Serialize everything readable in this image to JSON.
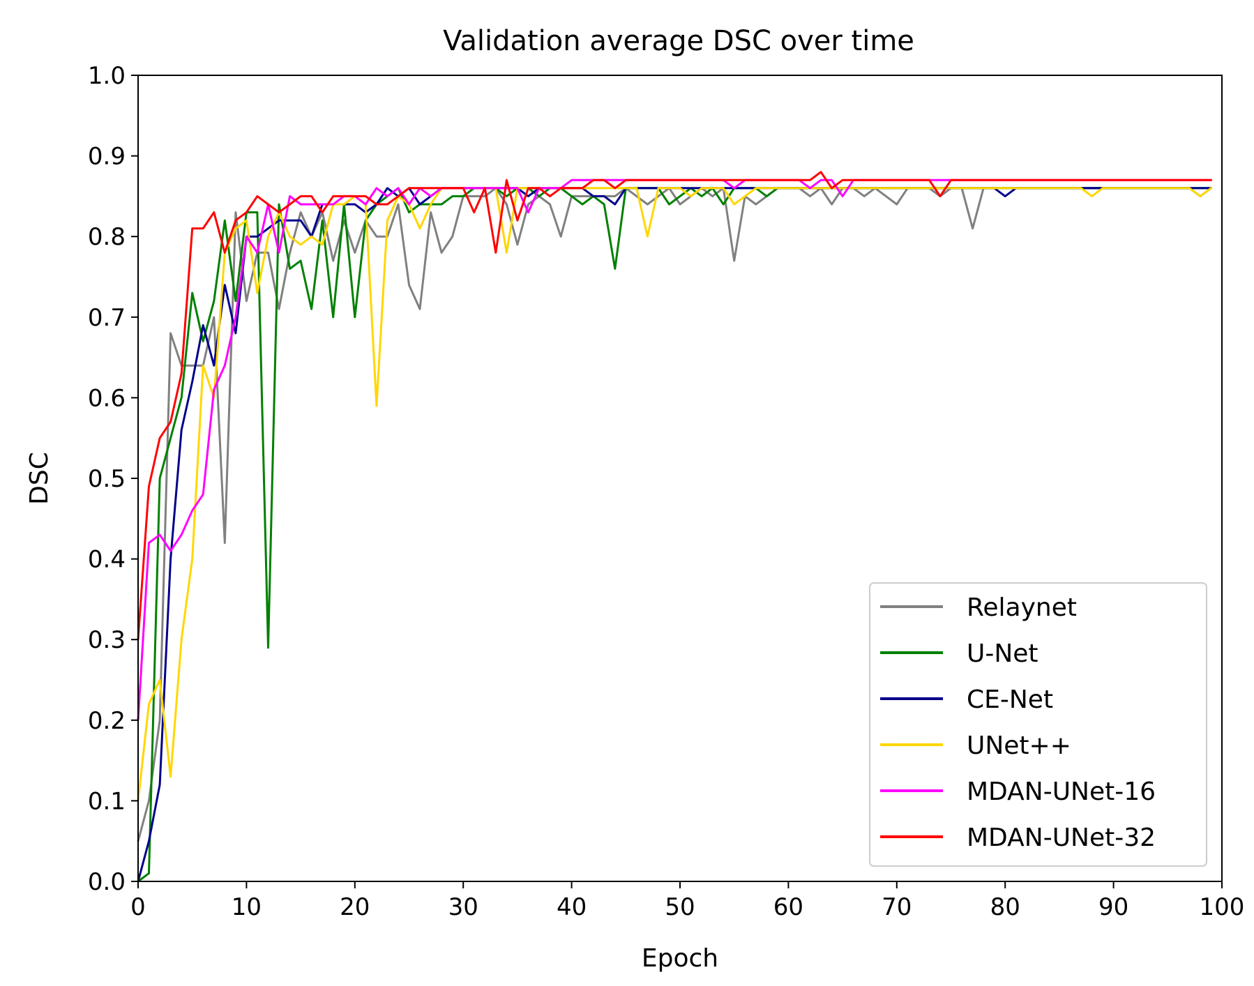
{
  "chart_data": {
    "type": "line",
    "title": "Validation average DSC over time",
    "xlabel": "Epoch",
    "ylabel": "DSC",
    "xlim": [
      0,
      100
    ],
    "ylim": [
      0.0,
      1.0
    ],
    "x_ticks": [
      "0",
      "10",
      "20",
      "30",
      "40",
      "50",
      "60",
      "70",
      "80",
      "90",
      "100"
    ],
    "y_ticks": [
      "0.0",
      "0.1",
      "0.2",
      "0.3",
      "0.4",
      "0.5",
      "0.6",
      "0.7",
      "0.8",
      "0.9",
      "1.0"
    ],
    "grid": false,
    "legend_position": "lower-right",
    "x": [
      0,
      1,
      2,
      3,
      4,
      5,
      6,
      7,
      8,
      9,
      10,
      11,
      12,
      13,
      14,
      15,
      16,
      17,
      18,
      19,
      20,
      21,
      22,
      23,
      24,
      25,
      26,
      27,
      28,
      29,
      30,
      31,
      32,
      33,
      34,
      35,
      36,
      37,
      38,
      39,
      40,
      41,
      42,
      43,
      44,
      45,
      46,
      47,
      48,
      49,
      50,
      51,
      52,
      53,
      54,
      55,
      56,
      57,
      58,
      59,
      60,
      61,
      62,
      63,
      64,
      65,
      66,
      67,
      68,
      69,
      70,
      71,
      72,
      73,
      74,
      75,
      76,
      77,
      78,
      79,
      80,
      81,
      82,
      83,
      84,
      85,
      86,
      87,
      88,
      89,
      90,
      91,
      92,
      93,
      94,
      95,
      96,
      97,
      98,
      99
    ],
    "series": [
      {
        "name": "Relaynet",
        "color": "#808080",
        "values": [
          0.05,
          0.1,
          0.2,
          0.68,
          0.64,
          0.64,
          0.64,
          0.7,
          0.42,
          0.83,
          0.72,
          0.78,
          0.78,
          0.71,
          0.78,
          0.83,
          0.8,
          0.83,
          0.77,
          0.82,
          0.78,
          0.82,
          0.8,
          0.8,
          0.84,
          0.74,
          0.71,
          0.83,
          0.78,
          0.8,
          0.85,
          0.85,
          0.85,
          0.86,
          0.84,
          0.79,
          0.84,
          0.85,
          0.84,
          0.8,
          0.85,
          0.85,
          0.85,
          0.85,
          0.85,
          0.86,
          0.85,
          0.84,
          0.85,
          0.86,
          0.84,
          0.85,
          0.86,
          0.85,
          0.86,
          0.77,
          0.85,
          0.84,
          0.85,
          0.86,
          0.86,
          0.86,
          0.85,
          0.86,
          0.84,
          0.86,
          0.86,
          0.85,
          0.86,
          0.85,
          0.84,
          0.86,
          0.86,
          0.86,
          0.85,
          0.86,
          0.86,
          0.81,
          0.86,
          0.86,
          0.86,
          0.86,
          0.86,
          0.86,
          0.86,
          0.86,
          0.86,
          0.86,
          0.86,
          0.86,
          0.86,
          0.86,
          0.86,
          0.86,
          0.86,
          0.86,
          0.86,
          0.86,
          0.85,
          0.86
        ]
      },
      {
        "name": "U-Net",
        "color": "#008000",
        "values": [
          0.0,
          0.01,
          0.5,
          0.55,
          0.6,
          0.73,
          0.67,
          0.72,
          0.82,
          0.72,
          0.83,
          0.83,
          0.29,
          0.84,
          0.76,
          0.77,
          0.71,
          0.82,
          0.7,
          0.84,
          0.7,
          0.82,
          0.84,
          0.85,
          0.86,
          0.83,
          0.84,
          0.84,
          0.84,
          0.85,
          0.85,
          0.86,
          0.86,
          0.86,
          0.85,
          0.86,
          0.86,
          0.85,
          0.86,
          0.86,
          0.85,
          0.84,
          0.85,
          0.84,
          0.76,
          0.86,
          0.86,
          0.86,
          0.86,
          0.84,
          0.85,
          0.86,
          0.85,
          0.86,
          0.84,
          0.86,
          0.86,
          0.86,
          0.85,
          0.86,
          0.86,
          0.86,
          0.86,
          0.86,
          0.86,
          0.86,
          0.86,
          0.86,
          0.86,
          0.86,
          0.86,
          0.86,
          0.86,
          0.86,
          0.86,
          0.86,
          0.86,
          0.86,
          0.86,
          0.86,
          0.86,
          0.86,
          0.86,
          0.86,
          0.86,
          0.86,
          0.86,
          0.86,
          0.86,
          0.86,
          0.86,
          0.86,
          0.86,
          0.86,
          0.86,
          0.86,
          0.86,
          0.86,
          0.86,
          0.86
        ]
      },
      {
        "name": "CE-Net",
        "color": "#00008B",
        "values": [
          0.0,
          0.05,
          0.12,
          0.4,
          0.56,
          0.62,
          0.69,
          0.64,
          0.74,
          0.68,
          0.8,
          0.8,
          0.81,
          0.82,
          0.82,
          0.82,
          0.8,
          0.84,
          0.84,
          0.84,
          0.84,
          0.83,
          0.84,
          0.86,
          0.85,
          0.86,
          0.84,
          0.85,
          0.86,
          0.86,
          0.86,
          0.86,
          0.86,
          0.86,
          0.86,
          0.86,
          0.85,
          0.86,
          0.86,
          0.86,
          0.86,
          0.86,
          0.85,
          0.85,
          0.84,
          0.86,
          0.86,
          0.86,
          0.86,
          0.86,
          0.86,
          0.86,
          0.86,
          0.86,
          0.86,
          0.86,
          0.86,
          0.86,
          0.86,
          0.86,
          0.86,
          0.86,
          0.86,
          0.86,
          0.86,
          0.86,
          0.86,
          0.86,
          0.86,
          0.86,
          0.86,
          0.86,
          0.86,
          0.86,
          0.86,
          0.86,
          0.86,
          0.86,
          0.86,
          0.86,
          0.85,
          0.86,
          0.86,
          0.86,
          0.86,
          0.86,
          0.86,
          0.86,
          0.86,
          0.86,
          0.86,
          0.86,
          0.86,
          0.86,
          0.86,
          0.86,
          0.86,
          0.86,
          0.86,
          0.86
        ]
      },
      {
        "name": "UNet++",
        "color": "#FFD700",
        "values": [
          0.1,
          0.22,
          0.25,
          0.13,
          0.3,
          0.4,
          0.64,
          0.6,
          0.78,
          0.81,
          0.82,
          0.73,
          0.8,
          0.83,
          0.8,
          0.79,
          0.8,
          0.79,
          0.84,
          0.84,
          0.85,
          0.84,
          0.59,
          0.82,
          0.85,
          0.84,
          0.81,
          0.84,
          0.86,
          0.86,
          0.86,
          0.86,
          0.86,
          0.86,
          0.78,
          0.86,
          0.86,
          0.86,
          0.86,
          0.86,
          0.86,
          0.86,
          0.86,
          0.86,
          0.86,
          0.86,
          0.86,
          0.8,
          0.86,
          0.86,
          0.86,
          0.85,
          0.86,
          0.86,
          0.86,
          0.84,
          0.85,
          0.86,
          0.86,
          0.86,
          0.86,
          0.86,
          0.86,
          0.86,
          0.86,
          0.86,
          0.86,
          0.86,
          0.86,
          0.86,
          0.86,
          0.86,
          0.86,
          0.86,
          0.86,
          0.86,
          0.86,
          0.86,
          0.86,
          0.86,
          0.86,
          0.86,
          0.86,
          0.86,
          0.86,
          0.86,
          0.86,
          0.86,
          0.85,
          0.86,
          0.86,
          0.86,
          0.86,
          0.86,
          0.86,
          0.86,
          0.86,
          0.86,
          0.85,
          0.86
        ]
      },
      {
        "name": "MDAN-UNet-16",
        "color": "#FF00FF",
        "values": [
          0.2,
          0.42,
          0.43,
          0.41,
          0.43,
          0.46,
          0.48,
          0.61,
          0.64,
          0.7,
          0.8,
          0.78,
          0.84,
          0.78,
          0.85,
          0.84,
          0.84,
          0.84,
          0.84,
          0.85,
          0.85,
          0.84,
          0.86,
          0.85,
          0.86,
          0.84,
          0.86,
          0.85,
          0.86,
          0.86,
          0.86,
          0.86,
          0.86,
          0.86,
          0.86,
          0.86,
          0.83,
          0.86,
          0.86,
          0.86,
          0.87,
          0.87,
          0.87,
          0.87,
          0.87,
          0.87,
          0.87,
          0.87,
          0.87,
          0.87,
          0.87,
          0.87,
          0.87,
          0.87,
          0.87,
          0.86,
          0.87,
          0.87,
          0.87,
          0.87,
          0.87,
          0.87,
          0.86,
          0.87,
          0.87,
          0.85,
          0.87,
          0.87,
          0.87,
          0.87,
          0.87,
          0.87,
          0.87,
          0.87,
          0.87,
          0.87,
          0.87,
          0.87,
          0.87,
          0.87,
          0.87,
          0.87,
          0.87,
          0.87,
          0.87,
          0.87,
          0.87,
          0.87,
          0.87,
          0.87,
          0.87,
          0.87,
          0.87,
          0.87,
          0.87,
          0.87,
          0.87,
          0.87,
          0.87,
          0.87
        ]
      },
      {
        "name": "MDAN-UNet-32",
        "color": "#FF0000",
        "values": [
          0.3,
          0.49,
          0.55,
          0.57,
          0.63,
          0.81,
          0.81,
          0.83,
          0.78,
          0.82,
          0.83,
          0.85,
          0.84,
          0.83,
          0.84,
          0.85,
          0.85,
          0.83,
          0.85,
          0.85,
          0.85,
          0.85,
          0.84,
          0.84,
          0.85,
          0.86,
          0.86,
          0.86,
          0.86,
          0.86,
          0.86,
          0.83,
          0.86,
          0.78,
          0.87,
          0.82,
          0.86,
          0.86,
          0.85,
          0.86,
          0.86,
          0.86,
          0.87,
          0.87,
          0.86,
          0.87,
          0.87,
          0.87,
          0.87,
          0.87,
          0.87,
          0.87,
          0.87,
          0.87,
          0.87,
          0.87,
          0.87,
          0.87,
          0.87,
          0.87,
          0.87,
          0.87,
          0.87,
          0.88,
          0.86,
          0.87,
          0.87,
          0.87,
          0.87,
          0.87,
          0.87,
          0.87,
          0.87,
          0.87,
          0.85,
          0.87,
          0.87,
          0.87,
          0.87,
          0.87,
          0.87,
          0.87,
          0.87,
          0.87,
          0.87,
          0.87,
          0.87,
          0.87,
          0.87,
          0.87,
          0.87,
          0.87,
          0.87,
          0.87,
          0.87,
          0.87,
          0.87,
          0.87,
          0.87,
          0.87
        ]
      }
    ]
  }
}
